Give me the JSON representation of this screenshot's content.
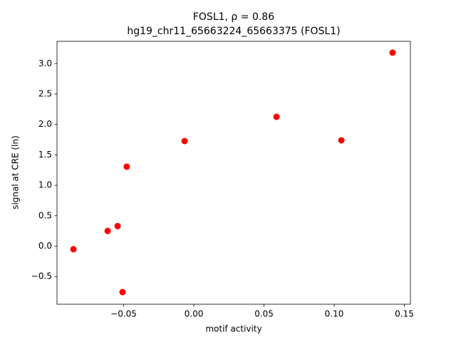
{
  "chart_data": {
    "type": "scatter",
    "title": "FOSL1, ρ = 0.86",
    "subtitle": "hg19_chr11_65663224_65663375 (FOSL1)",
    "x_label": "motif activity",
    "y_label": "signal at CRE (ln)",
    "color": "#ff0000",
    "x": [
      -0.0858,
      -0.0614,
      -0.0543,
      -0.0508,
      -0.0478,
      -0.0066,
      0.0589,
      0.1051,
      0.1416
    ],
    "values": [
      -0.05,
      0.25,
      0.33,
      -0.755,
      1.306,
      1.727,
      2.125,
      1.739,
      3.18
    ],
    "xlim": [
      -0.0975,
      0.1543
    ],
    "ylim": [
      -0.954,
      3.366
    ],
    "xticks": [
      {
        "value": -0.05,
        "label": "−0.05"
      },
      {
        "value": 0,
        "label": "0.00"
      },
      0.05,
      {
        "value": 0.1,
        "label": "0.10"
      },
      0.15
    ],
    "yticks": [
      {
        "value": -0.5,
        "label": "−0.5"
      },
      {
        "value": 0,
        "label": "0.0"
      },
      0.5,
      {
        "value": 1,
        "label": "1.0"
      },
      1.5,
      {
        "value": 2,
        "label": "2.0"
      },
      2.5,
      {
        "value": 3,
        "label": "3.0"
      }
    ]
  }
}
